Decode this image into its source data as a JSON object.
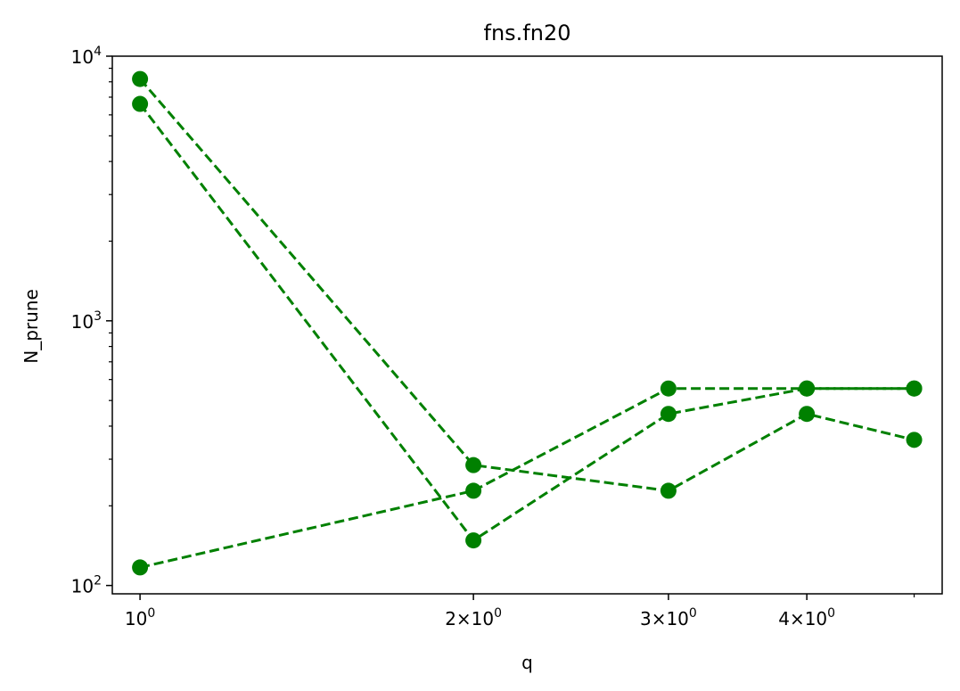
{
  "chart_data": {
    "type": "line",
    "title": "fns.fn20",
    "xlabel": "q",
    "ylabel": "N_prune",
    "xscale": "log",
    "yscale": "log",
    "xlim": [
      0.944,
      5.3
    ],
    "ylim": [
      93,
      10000
    ],
    "grid": false,
    "marker": "circle",
    "line_style": "dashed",
    "x": [
      1,
      2,
      3,
      4,
      5
    ],
    "series": [
      {
        "color": "#008000",
        "values": [
          8200,
          285,
          228,
          445,
          355
        ]
      },
      {
        "color": "#008000",
        "values": [
          6600,
          148,
          445,
          555,
          555
        ]
      },
      {
        "color": "#008000",
        "values": [
          117,
          228,
          555,
          555,
          555
        ]
      }
    ],
    "x_ticks": [
      {
        "value": 1,
        "mantissa": "",
        "base": "10",
        "exp": "0"
      },
      {
        "value": 2,
        "mantissa": "2×",
        "base": "10",
        "exp": "0"
      },
      {
        "value": 3,
        "mantissa": "3×",
        "base": "10",
        "exp": "0"
      },
      {
        "value": 4,
        "mantissa": "4×",
        "base": "10",
        "exp": "0"
      }
    ],
    "x_minor_ticks": [
      5
    ],
    "y_ticks": [
      {
        "value": 100,
        "base": "10",
        "exp": "2"
      },
      {
        "value": 1000,
        "base": "10",
        "exp": "3"
      },
      {
        "value": 10000,
        "base": "10",
        "exp": "4"
      }
    ]
  }
}
